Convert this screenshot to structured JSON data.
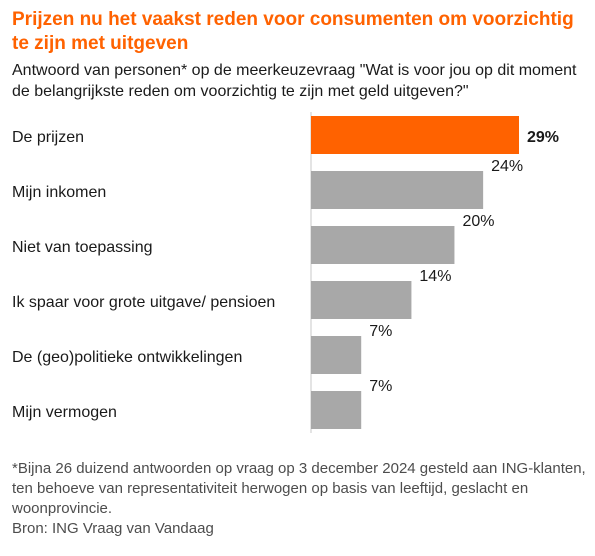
{
  "title": "Prijzen nu het vaakst reden voor consumenten om voorzichtig te zijn met uitgeven",
  "subtitle": "Antwoord van personen* op de meerkeuzevraag  \"Wat is voor jou op dit moment de belangrijkste reden om voorzichtig te zijn met geld uitgeven?\"",
  "footnote": "*Bijna 26 duizend antwoorden op vraag op 3 december 2024 gesteld aan ING-klanten, ten behoeve van representativiteit herwogen op basis van leeftijd, geslacht en woonprovincie.",
  "source": "Bron: ING Vraag van Vandaag",
  "colors": {
    "highlight": "#ff6200",
    "bar": "#a8a8a8",
    "title": "#ff6200"
  },
  "chart_data": {
    "type": "bar",
    "orientation": "horizontal",
    "categories": [
      "De prijzen",
      "Mijn inkomen",
      "Niet van toepassing",
      "Ik spaar voor grote uitgave/ pensioen",
      "De (geo)politieke ontwikkelingen",
      "Mijn vermogen"
    ],
    "values": [
      29,
      24,
      20,
      14,
      7,
      7
    ],
    "value_labels": [
      "29%",
      "24%",
      "20%",
      "14%",
      "7%",
      "7%"
    ],
    "highlight_index": 0,
    "unit": "%",
    "xlim": [
      0,
      29
    ]
  }
}
